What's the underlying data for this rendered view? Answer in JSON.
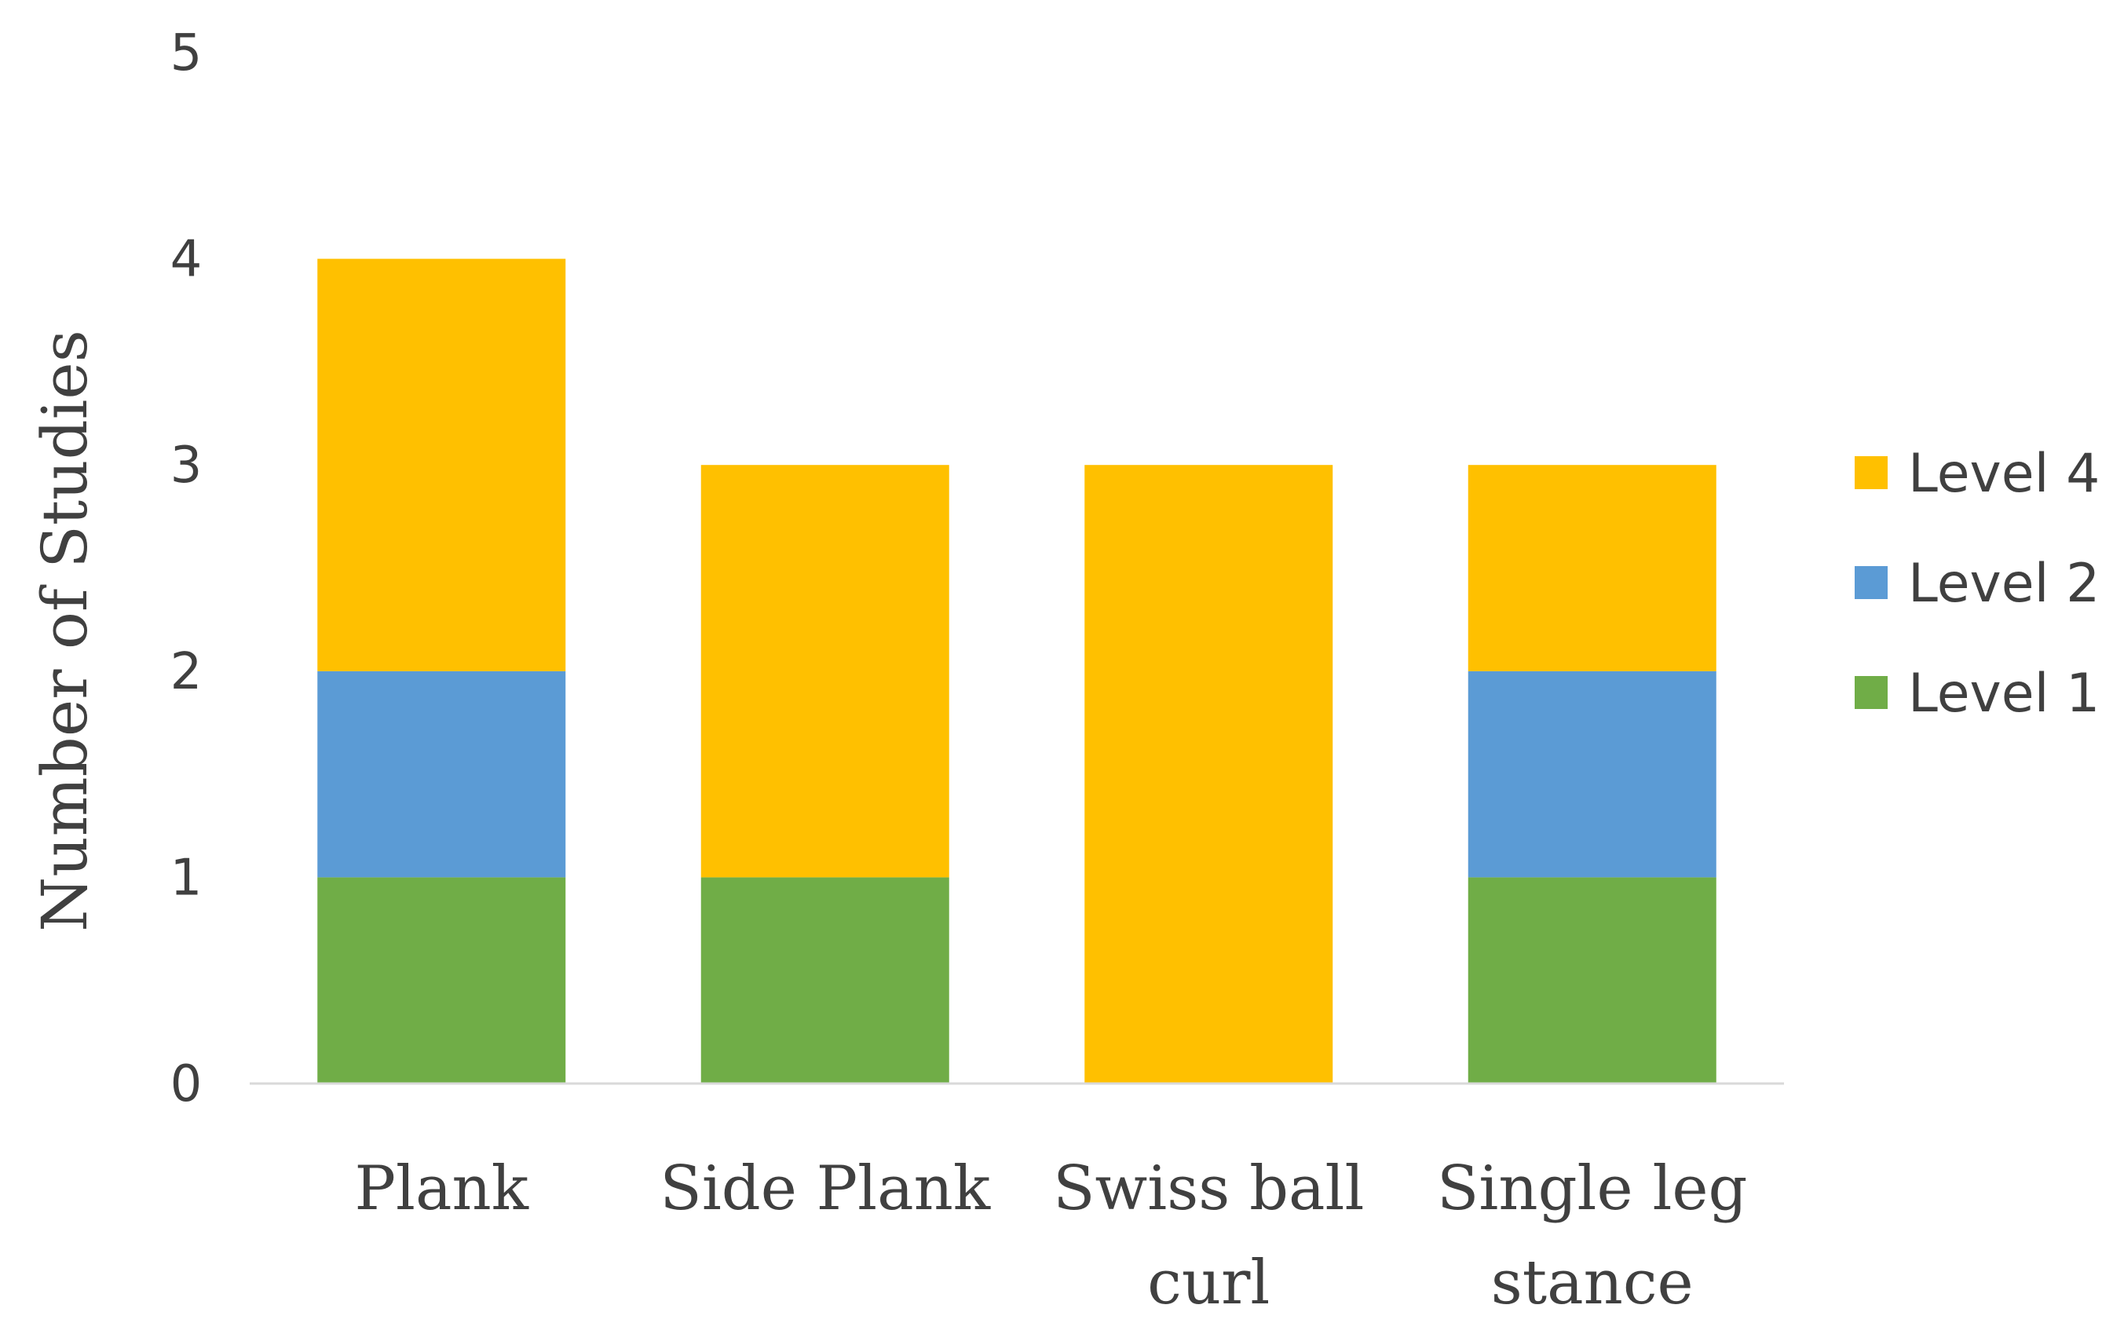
{
  "chart_data": {
    "type": "bar",
    "stacked": true,
    "title": "",
    "xlabel": "",
    "ylabel": "Number of Studies",
    "ylim": [
      0,
      5
    ],
    "yticks": [
      0,
      1,
      2,
      3,
      4,
      5
    ],
    "grid": false,
    "legend_position": "right",
    "categories": [
      [
        "Plank"
      ],
      [
        "Side Plank"
      ],
      [
        "Swiss ball",
        "curl"
      ],
      [
        "Single leg",
        "stance"
      ]
    ],
    "series": [
      {
        "name": "Level 1",
        "color": "#70AD47",
        "values": [
          1,
          1,
          0,
          1
        ]
      },
      {
        "name": "Level 2",
        "color": "#5B9BD5",
        "values": [
          1,
          0,
          0,
          1
        ]
      },
      {
        "name": "Level 4",
        "color": "#FFC000",
        "values": [
          2,
          2,
          3,
          1
        ]
      }
    ],
    "legend_order": [
      "Level 4",
      "Level 2",
      "Level 1"
    ]
  }
}
